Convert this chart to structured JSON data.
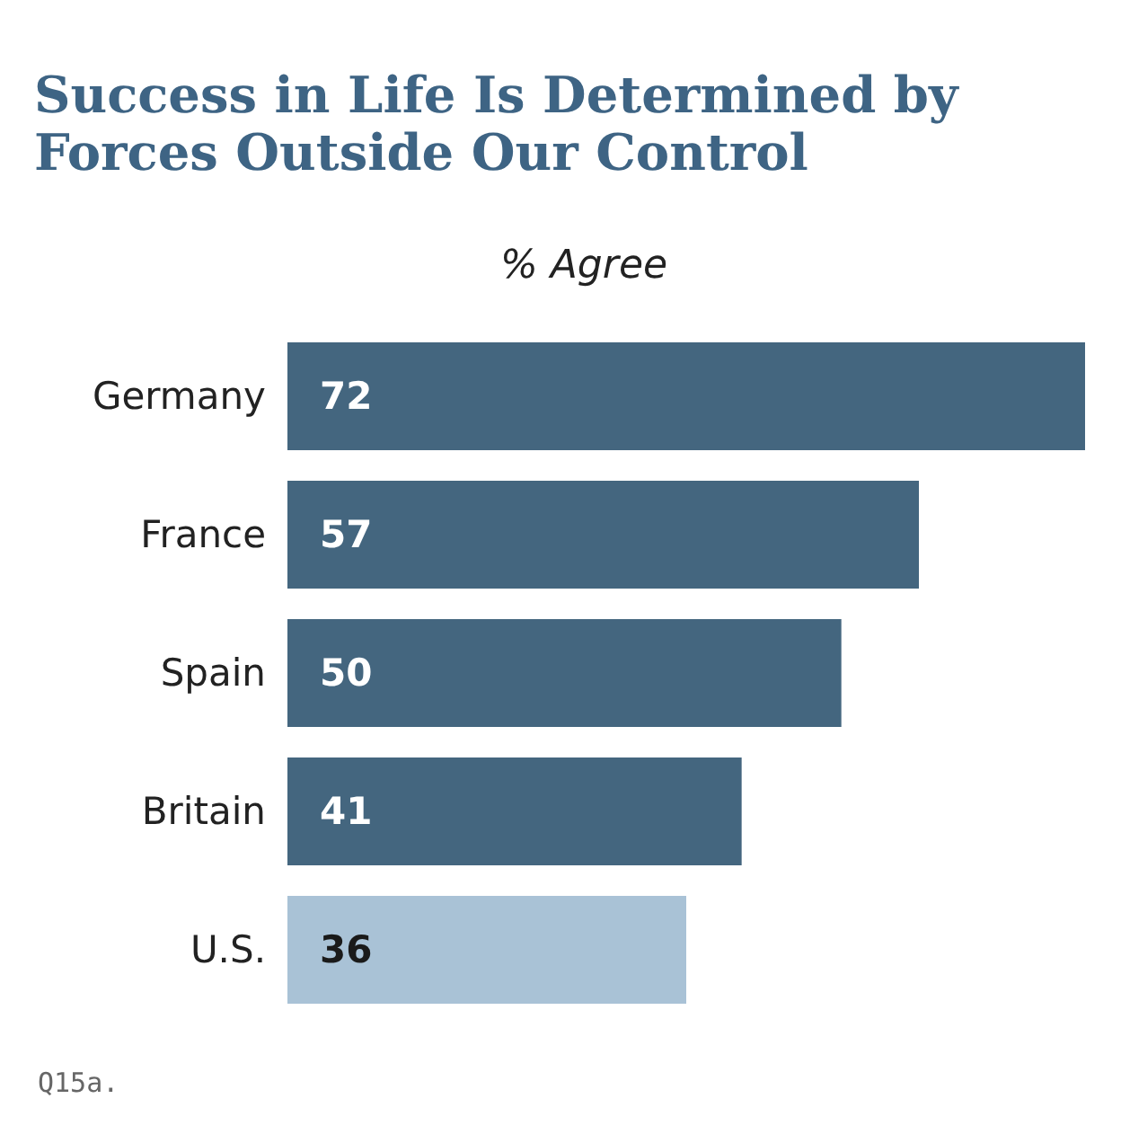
{
  "chart_data": {
    "type": "bar",
    "orientation": "horizontal",
    "title": "Success in Life Is Determined by\nForces Outside Our Control",
    "subtitle": "% Agree",
    "categories": [
      "Germany",
      "France",
      "Spain",
      "Britain",
      "U.S."
    ],
    "values": [
      72,
      57,
      50,
      41,
      36
    ],
    "colors": [
      "#44667f",
      "#44667f",
      "#44667f",
      "#44667f",
      "#a9c2d6"
    ],
    "data_labels": true,
    "annotations": [
      "Q15a."
    ]
  }
}
